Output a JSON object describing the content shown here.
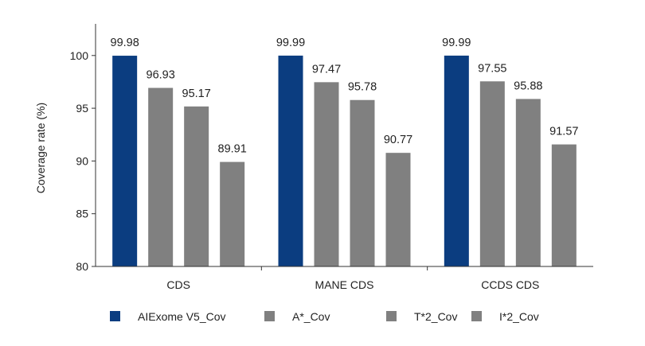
{
  "chart_data": {
    "type": "bar",
    "title": "",
    "xlabel": "",
    "ylabel": "Coverage rate (%)",
    "ylim": [
      80,
      103
    ],
    "yticks": [
      80,
      85,
      90,
      95,
      100
    ],
    "grid": false,
    "legend_position": "bottom",
    "categories": [
      "CDS",
      "MANE CDS",
      "CCDS CDS"
    ],
    "series": [
      {
        "name": "AIExome V5_Cov",
        "color": "#0b3d80",
        "values": [
          99.98,
          99.99,
          99.99
        ]
      },
      {
        "name": "A*_Cov",
        "color": "#808080",
        "values": [
          96.93,
          97.47,
          97.55
        ]
      },
      {
        "name": "T*2_Cov",
        "color": "#808080",
        "values": [
          95.17,
          95.78,
          95.88
        ]
      },
      {
        "name": "I*2_Cov",
        "color": "#808080",
        "values": [
          89.91,
          90.77,
          91.57
        ]
      }
    ],
    "data_labels": [
      [
        "99.98",
        "96.93",
        "95.17",
        "89.91"
      ],
      [
        "99.99",
        "97.47",
        "95.78",
        "90.77"
      ],
      [
        "99.99",
        "97.55",
        "95.88",
        "91.57"
      ]
    ]
  }
}
